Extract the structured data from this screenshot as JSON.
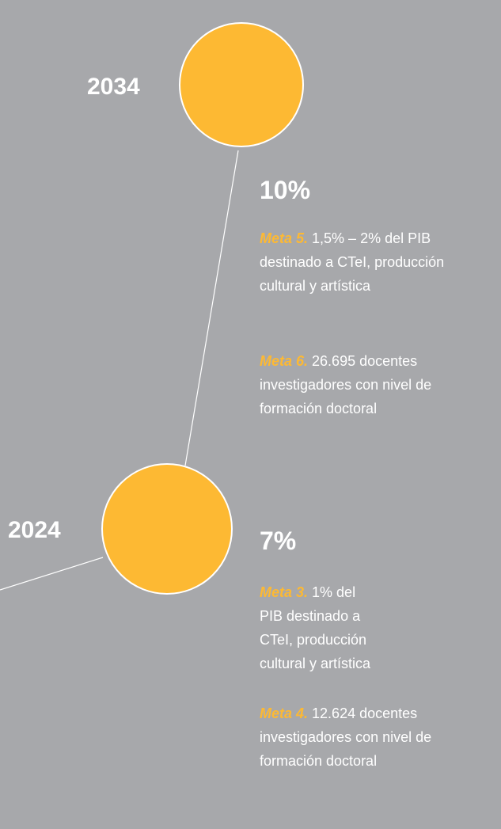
{
  "nodes": [
    {
      "year": "2034",
      "percent": "10%",
      "goals": [
        {
          "label": "Meta 5.",
          "lines": [
            "1,5% – 2% del PIB",
            "destinado a CTeI, producción",
            "cultural y artística"
          ]
        },
        {
          "label": "Meta 6.",
          "lines": [
            "26.695 docentes",
            "investigadores con nivel de",
            "formación doctoral"
          ]
        }
      ]
    },
    {
      "year": "2024",
      "percent": "7%",
      "goals": [
        {
          "label": "Meta 3.",
          "lines": [
            "1% del",
            "PIB destinado a",
            "CTeI, producción",
            "cultural y artística"
          ]
        },
        {
          "label": "Meta 4.",
          "lines": [
            "12.624 docentes",
            "investigadores con nivel de",
            "formación doctoral"
          ]
        }
      ]
    }
  ]
}
